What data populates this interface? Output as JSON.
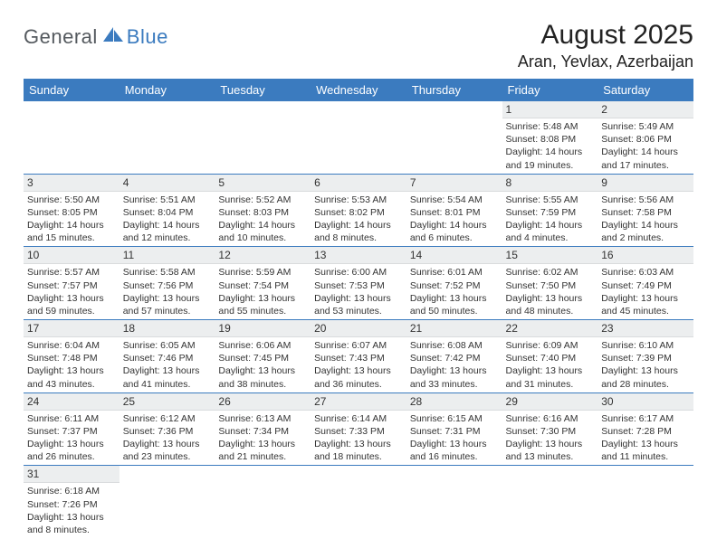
{
  "logo": {
    "part1": "General",
    "part2": "Blue"
  },
  "title": "August 2025",
  "location": "Aran, Yevlax, Azerbaijan",
  "colors": {
    "header_bg": "#3b7bbf",
    "header_text": "#ffffff",
    "daynum_bg": "#eceeef",
    "border": "#3b7bbf",
    "logo_gray": "#555a5f",
    "logo_blue": "#3b7bbf"
  },
  "day_headers": [
    "Sunday",
    "Monday",
    "Tuesday",
    "Wednesday",
    "Thursday",
    "Friday",
    "Saturday"
  ],
  "weeks": [
    [
      null,
      null,
      null,
      null,
      null,
      {
        "n": "1",
        "sr": "5:48 AM",
        "ss": "8:08 PM",
        "dl": "14 hours and 19 minutes."
      },
      {
        "n": "2",
        "sr": "5:49 AM",
        "ss": "8:06 PM",
        "dl": "14 hours and 17 minutes."
      }
    ],
    [
      {
        "n": "3",
        "sr": "5:50 AM",
        "ss": "8:05 PM",
        "dl": "14 hours and 15 minutes."
      },
      {
        "n": "4",
        "sr": "5:51 AM",
        "ss": "8:04 PM",
        "dl": "14 hours and 12 minutes."
      },
      {
        "n": "5",
        "sr": "5:52 AM",
        "ss": "8:03 PM",
        "dl": "14 hours and 10 minutes."
      },
      {
        "n": "6",
        "sr": "5:53 AM",
        "ss": "8:02 PM",
        "dl": "14 hours and 8 minutes."
      },
      {
        "n": "7",
        "sr": "5:54 AM",
        "ss": "8:01 PM",
        "dl": "14 hours and 6 minutes."
      },
      {
        "n": "8",
        "sr": "5:55 AM",
        "ss": "7:59 PM",
        "dl": "14 hours and 4 minutes."
      },
      {
        "n": "9",
        "sr": "5:56 AM",
        "ss": "7:58 PM",
        "dl": "14 hours and 2 minutes."
      }
    ],
    [
      {
        "n": "10",
        "sr": "5:57 AM",
        "ss": "7:57 PM",
        "dl": "13 hours and 59 minutes."
      },
      {
        "n": "11",
        "sr": "5:58 AM",
        "ss": "7:56 PM",
        "dl": "13 hours and 57 minutes."
      },
      {
        "n": "12",
        "sr": "5:59 AM",
        "ss": "7:54 PM",
        "dl": "13 hours and 55 minutes."
      },
      {
        "n": "13",
        "sr": "6:00 AM",
        "ss": "7:53 PM",
        "dl": "13 hours and 53 minutes."
      },
      {
        "n": "14",
        "sr": "6:01 AM",
        "ss": "7:52 PM",
        "dl": "13 hours and 50 minutes."
      },
      {
        "n": "15",
        "sr": "6:02 AM",
        "ss": "7:50 PM",
        "dl": "13 hours and 48 minutes."
      },
      {
        "n": "16",
        "sr": "6:03 AM",
        "ss": "7:49 PM",
        "dl": "13 hours and 45 minutes."
      }
    ],
    [
      {
        "n": "17",
        "sr": "6:04 AM",
        "ss": "7:48 PM",
        "dl": "13 hours and 43 minutes."
      },
      {
        "n": "18",
        "sr": "6:05 AM",
        "ss": "7:46 PM",
        "dl": "13 hours and 41 minutes."
      },
      {
        "n": "19",
        "sr": "6:06 AM",
        "ss": "7:45 PM",
        "dl": "13 hours and 38 minutes."
      },
      {
        "n": "20",
        "sr": "6:07 AM",
        "ss": "7:43 PM",
        "dl": "13 hours and 36 minutes."
      },
      {
        "n": "21",
        "sr": "6:08 AM",
        "ss": "7:42 PM",
        "dl": "13 hours and 33 minutes."
      },
      {
        "n": "22",
        "sr": "6:09 AM",
        "ss": "7:40 PM",
        "dl": "13 hours and 31 minutes."
      },
      {
        "n": "23",
        "sr": "6:10 AM",
        "ss": "7:39 PM",
        "dl": "13 hours and 28 minutes."
      }
    ],
    [
      {
        "n": "24",
        "sr": "6:11 AM",
        "ss": "7:37 PM",
        "dl": "13 hours and 26 minutes."
      },
      {
        "n": "25",
        "sr": "6:12 AM",
        "ss": "7:36 PM",
        "dl": "13 hours and 23 minutes."
      },
      {
        "n": "26",
        "sr": "6:13 AM",
        "ss": "7:34 PM",
        "dl": "13 hours and 21 minutes."
      },
      {
        "n": "27",
        "sr": "6:14 AM",
        "ss": "7:33 PM",
        "dl": "13 hours and 18 minutes."
      },
      {
        "n": "28",
        "sr": "6:15 AM",
        "ss": "7:31 PM",
        "dl": "13 hours and 16 minutes."
      },
      {
        "n": "29",
        "sr": "6:16 AM",
        "ss": "7:30 PM",
        "dl": "13 hours and 13 minutes."
      },
      {
        "n": "30",
        "sr": "6:17 AM",
        "ss": "7:28 PM",
        "dl": "13 hours and 11 minutes."
      }
    ],
    [
      {
        "n": "31",
        "sr": "6:18 AM",
        "ss": "7:26 PM",
        "dl": "13 hours and 8 minutes."
      },
      null,
      null,
      null,
      null,
      null,
      null
    ]
  ],
  "labels": {
    "sunrise": "Sunrise: ",
    "sunset": "Sunset: ",
    "daylight": "Daylight: "
  }
}
